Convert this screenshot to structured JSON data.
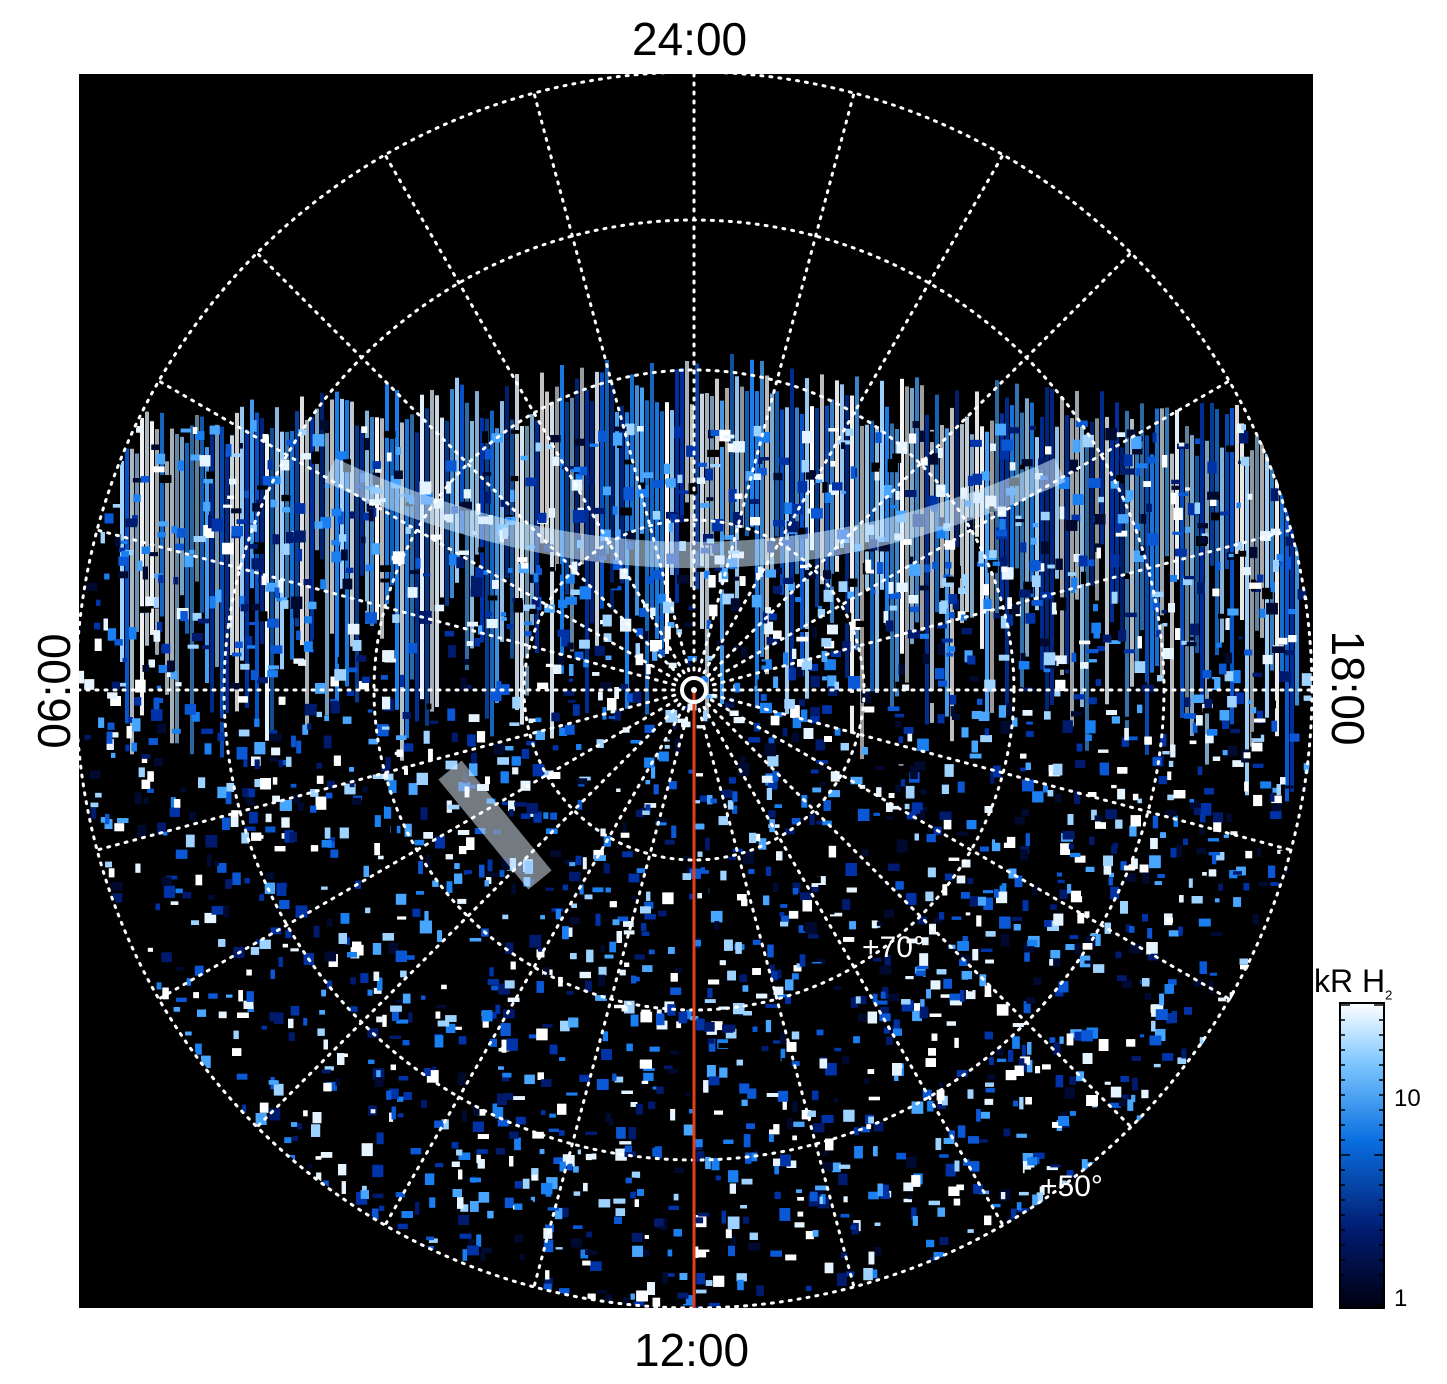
{
  "local_time_labels": {
    "top": "24:00",
    "bottom": "12:00",
    "left": "06:00",
    "right": "18:00"
  },
  "latitude_labels": {
    "inner": "+70°",
    "outer": "+50°"
  },
  "colorbar": {
    "title": "kR H",
    "title_subscript": "2",
    "tick_high": "10",
    "tick_low": "1"
  },
  "colors": {
    "background": "#000000",
    "grid": "#ffffff",
    "meridian_line": "#e2401c"
  }
}
